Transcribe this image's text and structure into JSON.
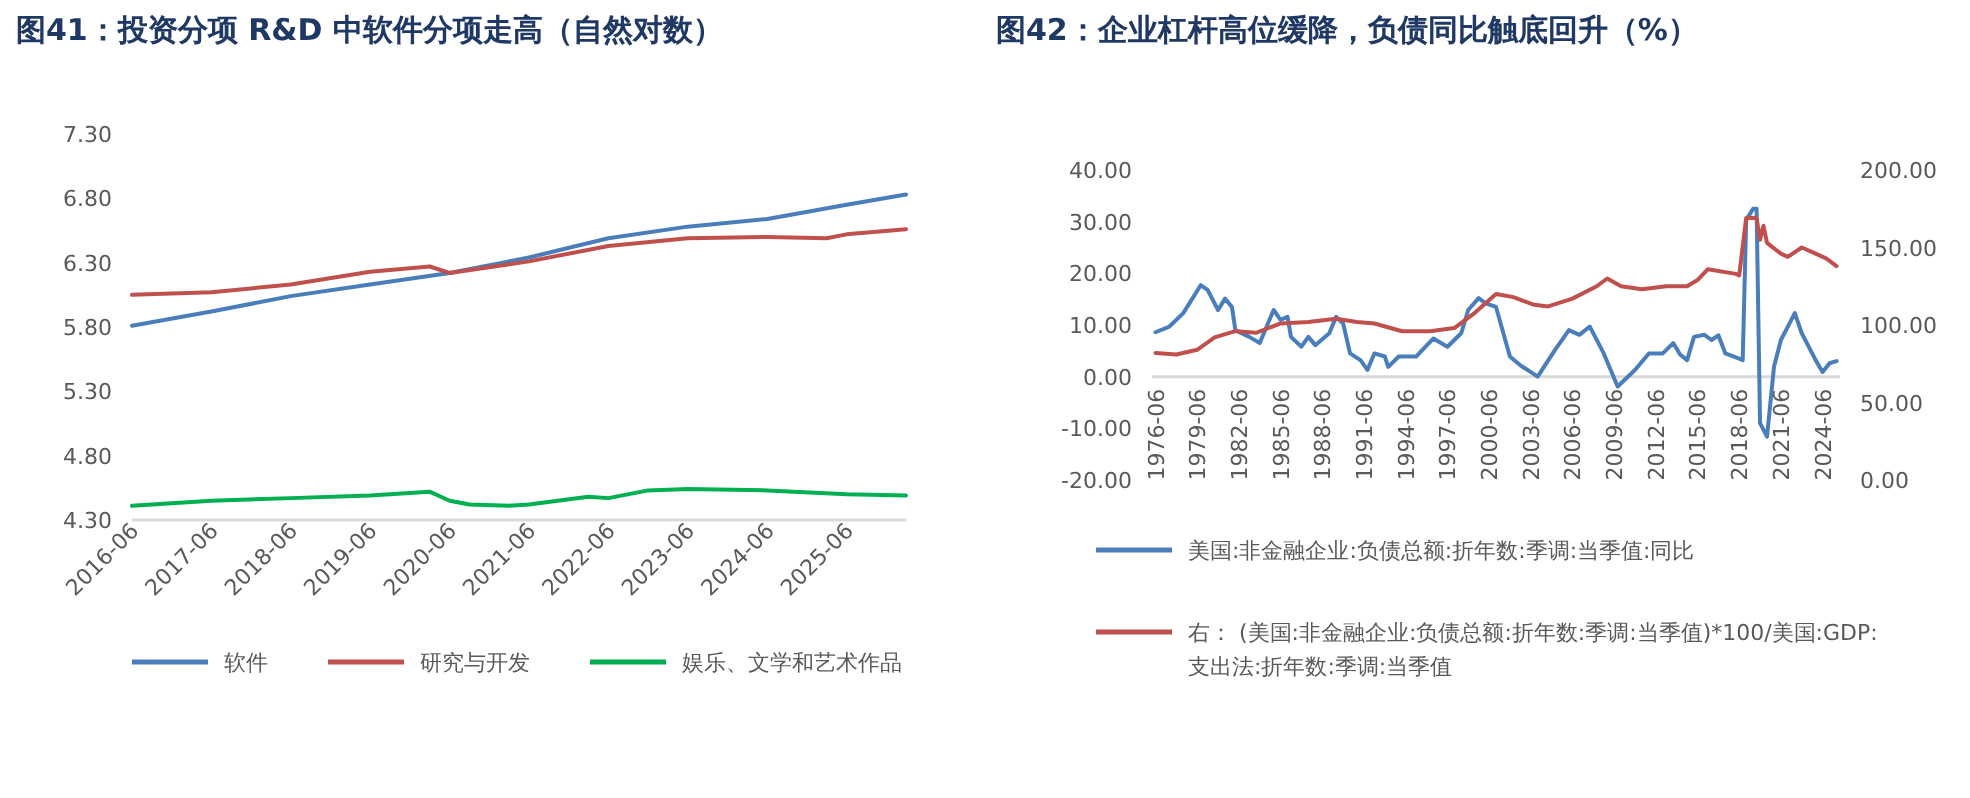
{
  "chart_data": [
    {
      "type": "line",
      "title": "图41：投资分项 R&D 中软件分项走高（自然对数）",
      "xlim": [
        "2016-06",
        "2026-03"
      ],
      "xticks": [
        "2016-06",
        "2017-06",
        "2018-06",
        "2019-06",
        "2020-06",
        "2021-06",
        "2022-06",
        "2023-06",
        "2024-06",
        "2025-06"
      ],
      "ylim": [
        4.3,
        7.3
      ],
      "yticks": [
        {
          "value": 4.3,
          "label": "4.30"
        },
        {
          "value": 4.8,
          "label": "4.80"
        },
        {
          "value": 5.3,
          "label": "5.30"
        },
        {
          "value": 5.8,
          "label": "5.80"
        },
        {
          "value": 6.3,
          "label": "6.30"
        },
        {
          "value": 6.8,
          "label": "6.80"
        },
        {
          "value": 7.3,
          "label": "7.30"
        }
      ],
      "grid": false,
      "legend": "bottom",
      "marker": "none",
      "line_style": "solid",
      "series": [
        {
          "name": "软件",
          "color": "#4a7ebb",
          "x": [
            "2016-06",
            "2017-06",
            "2018-06",
            "2019-06",
            "2020-06",
            "2021-06",
            "2022-06",
            "2023-06",
            "2024-06",
            "2025-06",
            "2026-03"
          ],
          "values": [
            5.81,
            5.92,
            6.04,
            6.13,
            6.22,
            6.34,
            6.49,
            6.58,
            6.64,
            6.75,
            6.83
          ]
        },
        {
          "name": "研究与开发",
          "color": "#c0504d",
          "x": [
            "2016-06",
            "2017-06",
            "2018-06",
            "2019-06",
            "2020-03",
            "2020-06",
            "2021-06",
            "2022-06",
            "2023-06",
            "2024-06",
            "2025-03",
            "2025-06",
            "2026-03"
          ],
          "values": [
            6.05,
            6.07,
            6.13,
            6.23,
            6.27,
            6.22,
            6.31,
            6.43,
            6.49,
            6.5,
            6.49,
            6.52,
            6.56
          ]
        },
        {
          "name": "娱乐、文学和艺术作品",
          "color": "#00b050",
          "x": [
            "2016-06",
            "2017-06",
            "2018-06",
            "2019-06",
            "2020-03",
            "2020-06",
            "2020-09",
            "2021-03",
            "2021-06",
            "2022-03",
            "2022-06",
            "2022-12",
            "2023-06",
            "2024-06",
            "2025-06",
            "2026-03"
          ],
          "values": [
            4.41,
            4.45,
            4.47,
            4.49,
            4.52,
            4.45,
            4.42,
            4.41,
            4.42,
            4.48,
            4.47,
            4.53,
            4.54,
            4.53,
            4.5,
            4.49
          ]
        }
      ]
    },
    {
      "type": "line",
      "title": "图42：企业杠杆高位缓降，负债同比触底回升（%）",
      "xlim": [
        "1976-03",
        "2025-09"
      ],
      "xticks": [
        "1976-06",
        "1979-06",
        "1982-06",
        "1985-06",
        "1988-06",
        "1991-06",
        "1994-06",
        "1997-06",
        "2000-06",
        "2003-06",
        "2006-06",
        "2009-06",
        "2012-06",
        "2015-06",
        "2018-06",
        "2021-06",
        "2024-06"
      ],
      "ylim": [
        -20,
        40
      ],
      "yticks": [
        {
          "value": -20,
          "label": "-20.00"
        },
        {
          "value": -10,
          "label": "-10.00"
        },
        {
          "value": 0,
          "label": "0.00"
        },
        {
          "value": 10,
          "label": "10.00"
        },
        {
          "value": 20,
          "label": "20.00"
        },
        {
          "value": 30,
          "label": "30.00"
        },
        {
          "value": 40,
          "label": "40.00"
        }
      ],
      "y2lim": [
        0,
        200
      ],
      "y2ticks": [
        {
          "value": 0,
          "label": "0.00"
        },
        {
          "value": 50,
          "label": "50.00"
        },
        {
          "value": 100,
          "label": "100.00"
        },
        {
          "value": 150,
          "label": "150.00"
        },
        {
          "value": 200,
          "label": "200.00"
        }
      ],
      "grid": false,
      "legend": "bottom",
      "marker": "none",
      "line_style": "solid",
      "series": [
        {
          "name": "美国:非金融企业:负债总额:折年数:季调:当季值:同比",
          "color": "#4a7ebb",
          "x": [
            "1976-06",
            "1977-06",
            "1978-06",
            "1979-09",
            "1980-03",
            "1980-12",
            "1981-06",
            "1981-12",
            "1982-03",
            "1983-03",
            "1983-12",
            "1984-12",
            "1985-06",
            "1985-12",
            "1986-03",
            "1986-12",
            "1987-06",
            "1987-12",
            "1988-12",
            "1989-06",
            "1989-12",
            "1990-06",
            "1991-03",
            "1991-09",
            "1992-03",
            "1992-12",
            "1993-03",
            "1993-12",
            "1995-03",
            "1996-06",
            "1997-06",
            "1998-06",
            "1998-12",
            "1999-09",
            "2000-03",
            "2000-12",
            "2001-12",
            "2002-09",
            "2003-12",
            "2005-03",
            "2006-03",
            "2006-12",
            "2007-09",
            "2008-09",
            "2009-09",
            "2010-12",
            "2011-12",
            "2012-12",
            "2013-09",
            "2014-03",
            "2014-09",
            "2015-03",
            "2015-12",
            "2016-06",
            "2016-12",
            "2017-06",
            "2018-06",
            "2018-09",
            "2018-12",
            "2019-06",
            "2019-09",
            "2019-12",
            "2020-06",
            "2020-12",
            "2021-06",
            "2021-12",
            "2022-06",
            "2022-12",
            "2023-12",
            "2024-06",
            "2024-12",
            "2025-06"
          ],
          "values": [
            8.6,
            9.7,
            12.3,
            17.7,
            16.8,
            12.9,
            15.1,
            13.5,
            9.0,
            7.7,
            6.5,
            12.9,
            11.0,
            11.6,
            7.7,
            5.8,
            7.7,
            6.1,
            8.4,
            11.6,
            10.3,
            4.5,
            3.2,
            1.3,
            4.5,
            3.9,
            1.9,
            3.9,
            3.9,
            7.4,
            5.8,
            8.4,
            12.9,
            15.2,
            14.2,
            13.5,
            3.9,
            2.2,
            0.0,
            5.2,
            9.0,
            8.1,
            9.7,
            4.5,
            -1.9,
            1.3,
            4.5,
            4.5,
            6.5,
            4.3,
            3.2,
            7.7,
            8.1,
            7.1,
            8.0,
            4.5,
            3.5,
            3.2,
            30.3,
            32.5,
            32.5,
            -9.0,
            -11.6,
            1.9,
            7.1,
            9.7,
            12.3,
            8.4,
            3.2,
            0.9,
            2.6,
            3.0
          ]
        },
        {
          "name": "右： (美国:非金融企业:负债总额:折年数:季调:当季值)*100/美国:GDP:支出法:折年数:季调:当季值",
          "color": "#c0504d",
          "axis": "y2",
          "x": [
            "1976-06",
            "1977-12",
            "1979-06",
            "1980-09",
            "1982-03",
            "1983-09",
            "1985-06",
            "1987-06",
            "1989-06",
            "1990-12",
            "1992-03",
            "1994-03",
            "1996-03",
            "1997-12",
            "1999-06",
            "2000-12",
            "2002-03",
            "2003-09",
            "2004-09",
            "2006-06",
            "2008-03",
            "2008-12",
            "2009-12",
            "2011-06",
            "2013-03",
            "2014-09",
            "2015-06",
            "2016-03",
            "2018-03",
            "2018-06",
            "2018-12",
            "2019-09",
            "2019-12",
            "2020-03",
            "2020-06",
            "2021-06",
            "2021-12",
            "2022-12",
            "2023-12",
            "2024-09",
            "2025-06"
          ],
          "values": [
            82,
            81,
            84,
            92,
            96,
            95,
            101,
            102,
            104,
            102,
            101,
            96,
            96,
            98,
            108,
            120,
            118,
            113,
            112,
            117,
            125,
            130,
            125,
            123,
            125,
            125,
            129,
            136,
            133,
            132,
            169,
            169,
            155,
            164,
            153,
            146,
            144,
            150,
            146,
            143,
            138
          ]
        }
      ]
    }
  ]
}
